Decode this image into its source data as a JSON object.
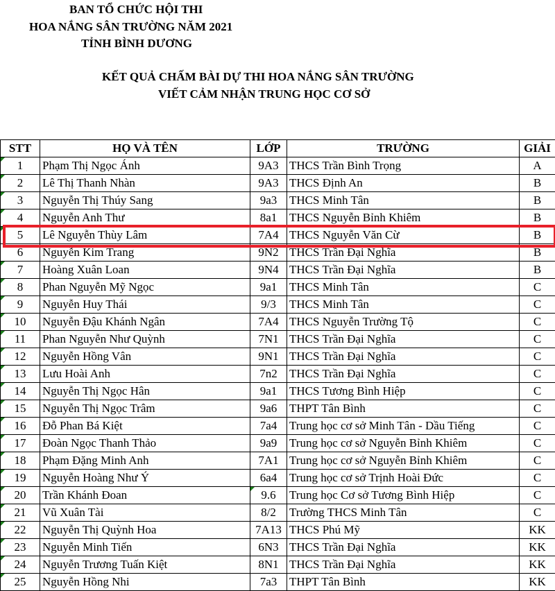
{
  "organizer": [
    "BAN TỔ CHỨC HỘI THI",
    "HOA NẮNG SÂN TRƯỜNG NĂM 2021",
    "TỈNH BÌNH DƯƠNG"
  ],
  "title": [
    "KẾT QUẢ CHẤM BÀI DỰ THI HOA NẮNG SÂN TRƯỜNG",
    "VIẾT CẢM NHẬN TRUNG HỌC CƠ SỞ"
  ],
  "columns": [
    "STT",
    "HỌ VÀ TÊN",
    "LỚP",
    "TRƯỜNG",
    "GIẢI"
  ],
  "highlight_color": "#e8202a",
  "highlighted_row": 5,
  "rows": [
    [
      "1",
      "Phạm Thị Ngọc Ánh",
      "9A3",
      "THCS Trần Bình Trọng",
      "A"
    ],
    [
      "2",
      "Lê Thị Thanh Nhàn",
      "9A3",
      "THCS Định An",
      "B"
    ],
    [
      "3",
      "Nguyễn Thị Thúy Sang",
      "9a3",
      "THCS Minh Tân",
      "B"
    ],
    [
      "4",
      "Nguyễn Anh Thư",
      "8a1",
      "THCS Nguyễn Bỉnh Khiêm",
      "B"
    ],
    [
      "5",
      "Lê Nguyễn Thùy Lâm",
      "7A4",
      "THCS Nguyễn Văn Cừ",
      "B"
    ],
    [
      "6",
      "Nguyễn Kim Trang",
      "9N2",
      "THCS Trần Đại Nghĩa",
      "B"
    ],
    [
      "7",
      "Hoàng Xuân Loan",
      "9N4",
      "THCS Trần Đại Nghĩa",
      "B"
    ],
    [
      "8",
      "Phan Nguyễn Mỹ Ngọc",
      "9a1",
      "THCS Minh Tân",
      "C"
    ],
    [
      "9",
      "Nguyễn Huy Thái",
      "9/3",
      "THCS Minh Tân",
      "C"
    ],
    [
      "10",
      "Nguyễn Đậu Khánh Ngân",
      "7A4",
      "THCS Nguyễn Trường Tộ",
      "C"
    ],
    [
      "11",
      "Phan Nguyễn Như Quỳnh",
      "7N1",
      "THCS Trần Đại Nghĩa",
      "C"
    ],
    [
      "12",
      "Nguyễn Hồng Vân",
      "9N1",
      "THCS Trần Đại Nghĩa",
      "C"
    ],
    [
      "13",
      "Lưu Hoài Anh",
      "7n2",
      "THCS Trần Đại Nghĩa",
      "C"
    ],
    [
      "14",
      "Nguyễn Thị Ngọc Hân",
      "9a1",
      "THCS Tương Bình Hiệp",
      "C"
    ],
    [
      "15",
      "Nguyễn Thị Ngọc Trâm",
      "9a6",
      "THPT Tân Bình",
      "C"
    ],
    [
      "16",
      "Đỗ Phan Bá Kiệt",
      "7a4",
      "Trung học cơ sở Minh Tân - Dầu Tiếng",
      "C"
    ],
    [
      "17",
      "Đoàn Ngọc Thanh Thảo",
      "9a9",
      "Trung học cơ sở Nguyễn Bỉnh Khiêm",
      "C"
    ],
    [
      "18",
      "Phạm Đặng Minh Anh",
      "7A1",
      "Trung học cơ sở Nguyễn Bỉnh Khiêm",
      "C"
    ],
    [
      "19",
      " Nguyễn Hoàng Như Ý",
      "6a4",
      "Trung học cơ sở Trịnh Hoài Đức",
      "C"
    ],
    [
      "20",
      "Trần Khánh Đoan",
      "9.6",
      "Trung học Cơ sở Tương Bình Hiệp",
      "C"
    ],
    [
      "21",
      "Vũ Xuân Tài",
      "8/2",
      "Trường THCS Minh Tân",
      "C"
    ],
    [
      "22",
      "Nguyễn Thị Quỳnh Hoa",
      "7A13",
      "THCS Phú Mỹ",
      "KK"
    ],
    [
      "23",
      "Nguyễn Minh Tiến",
      "6N3",
      "THCS Trần Đại Nghĩa",
      "KK"
    ],
    [
      "24",
      "Nguyễn Trương Tuấn Kiệt",
      "8N1",
      "THCS Trần Đại Nghĩa",
      "KK"
    ],
    [
      "25",
      "Nguyễn Hồng Nhi",
      "7a3",
      "THPT Tân Bình",
      "KK"
    ]
  ]
}
